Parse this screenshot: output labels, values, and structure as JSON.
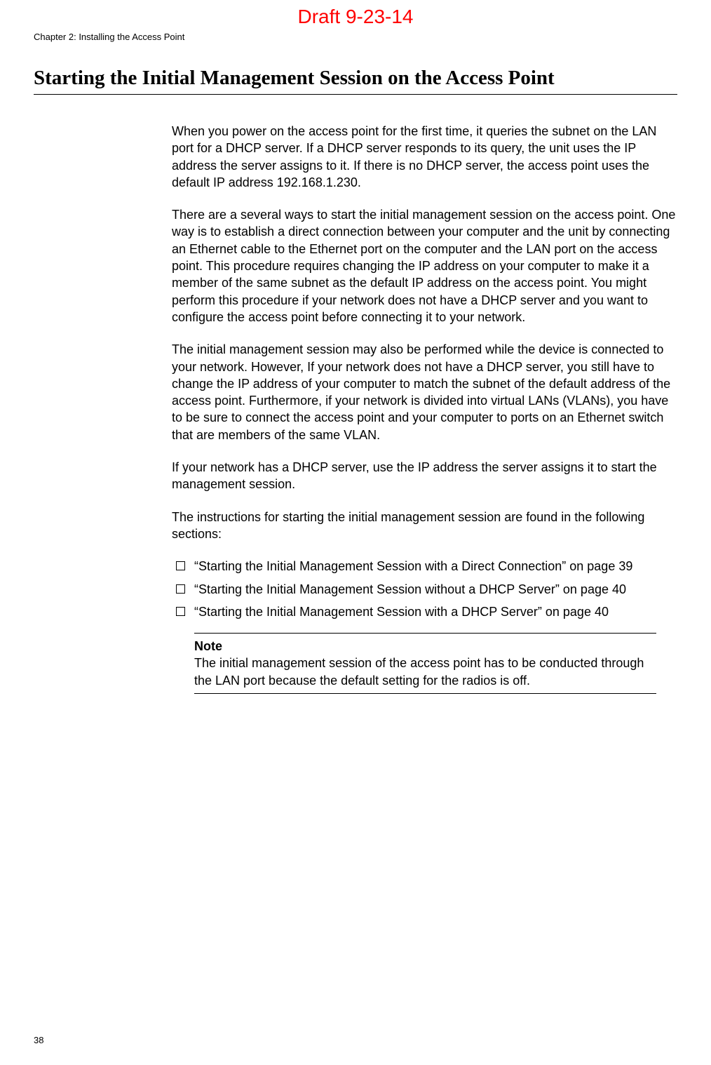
{
  "draft_label": "Draft 9-23-14",
  "chapter_header": "Chapter 2: Installing the Access Point",
  "section_title": "Starting the Initial Management Session on the Access Point",
  "paragraphs": {
    "p1": "When you power on the access point for the first time, it queries the subnet on the LAN port for a DHCP server. If a DHCP server responds to its query, the unit uses the IP address the server assigns to it. If there is no DHCP server, the access point uses the default IP address 192.168.1.230.",
    "p2": "There are a several ways to start the initial management session on the access point. One way is to establish a direct connection between your computer and the unit by connecting an Ethernet cable to the Ethernet port on the computer and the LAN port on the access point. This procedure requires changing the IP address on your computer to make it a member of the same subnet as the default IP address on the access point. You might perform this procedure if your network does not have a DHCP server and you want to configure the access point before connecting it to your network.",
    "p3": "The initial management session may also be performed while the device is connected to your network. However, If your network does not have a DHCP server, you still have to change the IP address of your computer to match the subnet of the default address of the access point. Furthermore, if your network is divided into virtual LANs (VLANs), you have to be sure to connect the access point and your computer to ports on an Ethernet switch that are members of the same VLAN.",
    "p4": "If your network has a DHCP server, use the IP address the server assigns it to start the management session.",
    "p5": "The instructions for starting the initial management session are found in the following sections:"
  },
  "bullets": [
    "“Starting the Initial Management Session with a Direct Connection” on page 39",
    "“Starting the Initial Management Session without a DHCP Server” on page 40",
    "“Starting the Initial Management Session with a DHCP Server” on page 40"
  ],
  "note": {
    "label": "Note",
    "text": "The initial management session of the access point has to be conducted through the LAN port because the default setting for the radios is off."
  },
  "page_number": "38"
}
